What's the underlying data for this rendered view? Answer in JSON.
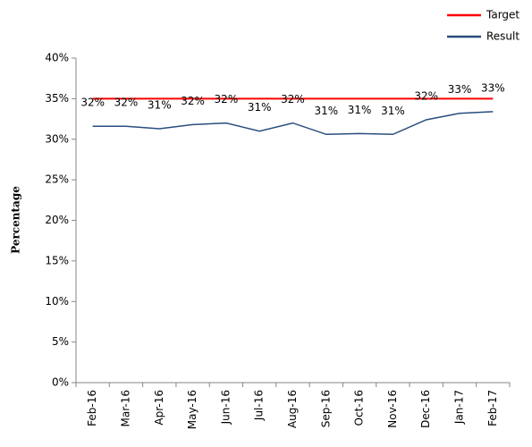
{
  "chart_data": {
    "type": "line",
    "y_label": "Percentage",
    "categories": [
      "Feb-16",
      "Mar-16",
      "Apr-16",
      "May-16",
      "Jun-16",
      "Jul-16",
      "Aug-16",
      "Sep-16",
      "Oct-16",
      "Nov-16",
      "Dec-16",
      "Jan-17",
      "Feb-17"
    ],
    "series": [
      {
        "name": "Target",
        "color": "#ff0000",
        "values": [
          35,
          35,
          35,
          35,
          35,
          35,
          35,
          35,
          35,
          35,
          35,
          35,
          35
        ]
      },
      {
        "name": "Result",
        "color": "#2a4d7f",
        "values": [
          31.6,
          31.6,
          31.3,
          31.8,
          32.0,
          31.0,
          32.0,
          30.6,
          30.7,
          30.6,
          32.4,
          33.2,
          33.4
        ],
        "value_labels": [
          "32%",
          "32%",
          "31%",
          "32%",
          "32%",
          "31%",
          "32%",
          "31%",
          "31%",
          "31%",
          "32%",
          "33%",
          "33%"
        ]
      }
    ],
    "ylim": [
      0,
      40
    ],
    "yticks": [
      {
        "value": 0,
        "label": "0%"
      },
      {
        "value": 5,
        "label": "5%"
      },
      {
        "value": 10,
        "label": "10%"
      },
      {
        "value": 15,
        "label": "15%"
      },
      {
        "value": 20,
        "label": "20%"
      },
      {
        "value": 25,
        "label": "25%"
      },
      {
        "value": 30,
        "label": "30%"
      },
      {
        "value": 35,
        "label": "35%"
      },
      {
        "value": 40,
        "label": "40%"
      }
    ],
    "legend": "top-right"
  }
}
